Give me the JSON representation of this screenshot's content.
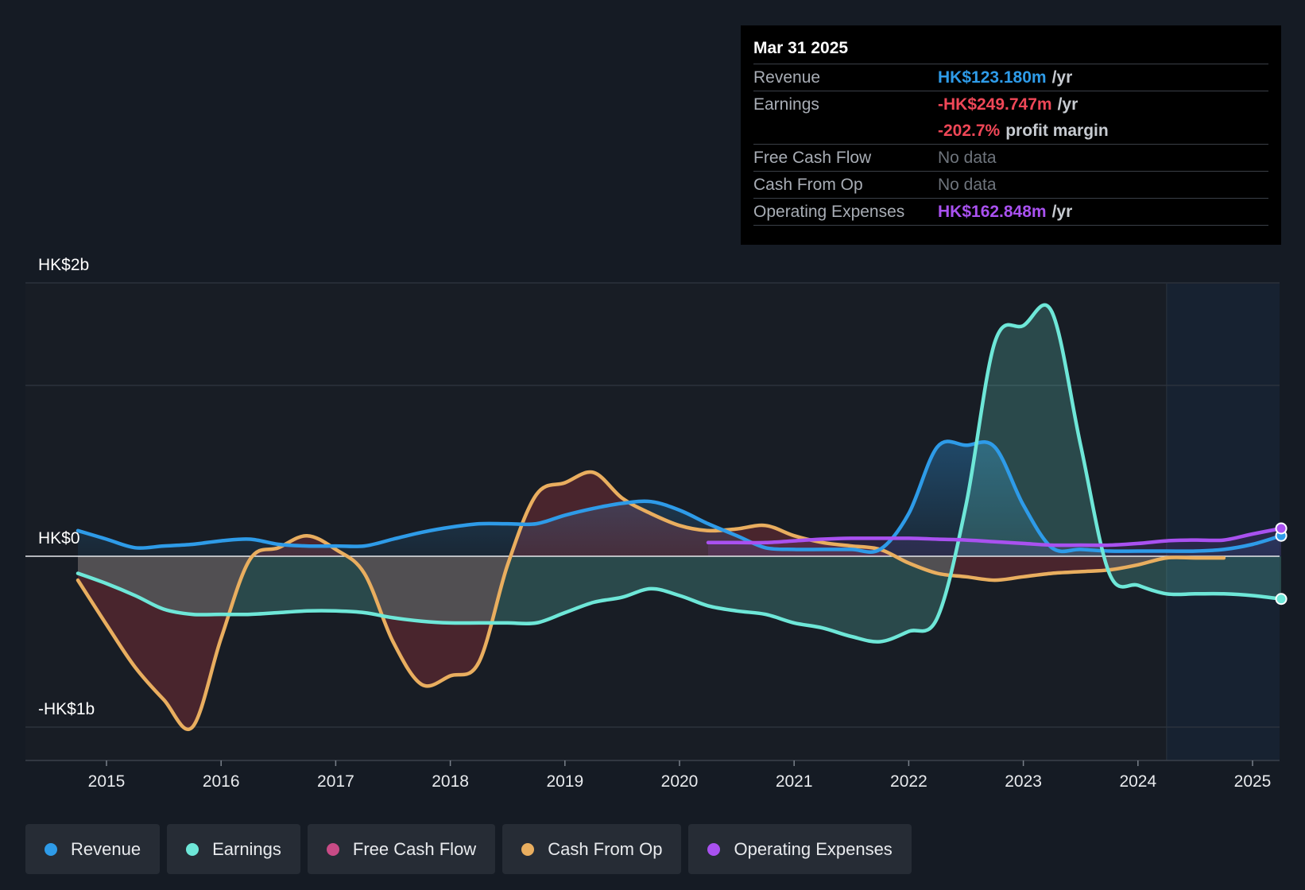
{
  "tooltip": {
    "date": "Mar 31 2025",
    "revenue_label": "Revenue",
    "revenue_value": "HK$123.180m",
    "revenue_unit": "/yr",
    "earnings_label": "Earnings",
    "earnings_value": "-HK$249.747m",
    "earnings_unit": "/yr",
    "margin_value": "-202.7%",
    "margin_label": "profit margin",
    "fcf_label": "Free Cash Flow",
    "fcf_value": "No data",
    "cfo_label": "Cash From Op",
    "cfo_value": "No data",
    "opex_label": "Operating Expenses",
    "opex_value": "HK$162.848m",
    "opex_unit": "/yr"
  },
  "legend": [
    {
      "label": "Revenue",
      "color": "#2e9be8"
    },
    {
      "label": "Earnings",
      "color": "#6ee7d8"
    },
    {
      "label": "Free Cash Flow",
      "color": "#c84b86"
    },
    {
      "label": "Cash From Op",
      "color": "#e9ae5f"
    },
    {
      "label": "Operating Expenses",
      "color": "#a951f0"
    }
  ],
  "chart_data": {
    "type": "line",
    "title": "",
    "xlabel": "",
    "ylabel": "",
    "ylim": [
      -1.2,
      1.6
    ],
    "xlim": [
      2014.75,
      2025.25
    ],
    "y_tick_labels": [
      {
        "value": 1.6,
        "label": "HK$2b"
      },
      {
        "value": 0,
        "label": "HK$0"
      },
      {
        "value": -1.0,
        "label": "-HK$1b"
      }
    ],
    "x_ticks": [
      2015,
      2016,
      2017,
      2018,
      2019,
      2020,
      2021,
      2022,
      2023,
      2024,
      2025
    ],
    "x_tick_labels": [
      "2015",
      "2016",
      "2017",
      "2018",
      "2019",
      "2020",
      "2021",
      "2022",
      "2023",
      "2024",
      "2025"
    ],
    "series": [
      {
        "name": "Revenue",
        "color": "#2e9be8",
        "x": [
          2014.75,
          2015.0,
          2015.25,
          2015.5,
          2015.75,
          2016.0,
          2016.25,
          2016.5,
          2016.75,
          2017.0,
          2017.25,
          2017.5,
          2017.75,
          2018.0,
          2018.25,
          2018.5,
          2018.75,
          2019.0,
          2019.25,
          2019.5,
          2019.75,
          2020.0,
          2020.25,
          2020.5,
          2020.75,
          2021.0,
          2021.25,
          2021.5,
          2021.75,
          2022.0,
          2022.25,
          2022.5,
          2022.75,
          2023.0,
          2023.25,
          2023.5,
          2023.75,
          2024.0,
          2024.25,
          2024.5,
          2024.75,
          2025.0,
          2025.25
        ],
        "values": [
          0.15,
          0.1,
          0.05,
          0.06,
          0.07,
          0.09,
          0.1,
          0.07,
          0.06,
          0.06,
          0.06,
          0.1,
          0.14,
          0.17,
          0.19,
          0.19,
          0.19,
          0.24,
          0.28,
          0.31,
          0.32,
          0.27,
          0.19,
          0.12,
          0.05,
          0.04,
          0.04,
          0.04,
          0.04,
          0.25,
          0.64,
          0.65,
          0.64,
          0.3,
          0.05,
          0.04,
          0.03,
          0.03,
          0.03,
          0.03,
          0.04,
          0.07,
          0.12
        ]
      },
      {
        "name": "Earnings",
        "color": "#6ee7d8",
        "x": [
          2014.75,
          2015.0,
          2015.25,
          2015.5,
          2015.75,
          2016.0,
          2016.25,
          2016.5,
          2016.75,
          2017.0,
          2017.25,
          2017.5,
          2017.75,
          2018.0,
          2018.25,
          2018.5,
          2018.75,
          2019.0,
          2019.25,
          2019.5,
          2019.75,
          2020.0,
          2020.25,
          2020.5,
          2020.75,
          2021.0,
          2021.25,
          2021.5,
          2021.75,
          2022.0,
          2022.25,
          2022.5,
          2022.75,
          2023.0,
          2023.25,
          2023.5,
          2023.75,
          2024.0,
          2024.25,
          2024.5,
          2024.75,
          2025.0,
          2025.25
        ],
        "values": [
          -0.1,
          -0.16,
          -0.23,
          -0.31,
          -0.34,
          -0.34,
          -0.34,
          -0.33,
          -0.32,
          -0.32,
          -0.33,
          -0.36,
          -0.38,
          -0.39,
          -0.39,
          -0.39,
          -0.39,
          -0.33,
          -0.27,
          -0.24,
          -0.19,
          -0.23,
          -0.29,
          -0.32,
          -0.34,
          -0.39,
          -0.42,
          -0.47,
          -0.5,
          -0.44,
          -0.36,
          0.3,
          1.25,
          1.35,
          1.43,
          0.65,
          -0.1,
          -0.17,
          -0.22,
          -0.22,
          -0.22,
          -0.23,
          -0.25
        ]
      },
      {
        "name": "Cash From Op",
        "color": "#e9ae5f",
        "x": [
          2014.75,
          2015.0,
          2015.25,
          2015.5,
          2015.75,
          2016.0,
          2016.25,
          2016.5,
          2016.75,
          2017.0,
          2017.25,
          2017.5,
          2017.75,
          2018.0,
          2018.25,
          2018.5,
          2018.75,
          2019.0,
          2019.25,
          2019.5,
          2019.75,
          2020.0,
          2020.25,
          2020.5,
          2020.75,
          2021.0,
          2021.25,
          2021.5,
          2021.75,
          2022.0,
          2022.25,
          2022.5,
          2022.75,
          2023.0,
          2023.25,
          2023.5,
          2023.75,
          2024.0,
          2024.25,
          2024.5,
          2024.75
        ],
        "values": [
          -0.14,
          -0.4,
          -0.65,
          -0.84,
          -1.0,
          -0.48,
          -0.02,
          0.05,
          0.12,
          0.04,
          -0.1,
          -0.5,
          -0.75,
          -0.7,
          -0.62,
          -0.05,
          0.36,
          0.43,
          0.49,
          0.34,
          0.25,
          0.18,
          0.15,
          0.16,
          0.18,
          0.12,
          0.08,
          0.06,
          0.04,
          -0.04,
          -0.1,
          -0.12,
          -0.14,
          -0.12,
          -0.1,
          -0.09,
          -0.08,
          -0.05,
          -0.01,
          -0.01,
          -0.01
        ]
      },
      {
        "name": "Operating Expenses",
        "color": "#a951f0",
        "x": [
          2020.25,
          2020.5,
          2020.75,
          2021.0,
          2021.25,
          2021.5,
          2021.75,
          2022.0,
          2022.25,
          2022.5,
          2022.75,
          2023.0,
          2023.25,
          2023.5,
          2023.75,
          2024.0,
          2024.25,
          2024.5,
          2024.75,
          2025.0,
          2025.25
        ],
        "values": [
          0.08,
          0.08,
          0.08,
          0.09,
          0.1,
          0.105,
          0.105,
          0.105,
          0.1,
          0.095,
          0.085,
          0.075,
          0.065,
          0.065,
          0.065,
          0.075,
          0.09,
          0.095,
          0.095,
          0.13,
          0.163
        ]
      }
    ]
  }
}
